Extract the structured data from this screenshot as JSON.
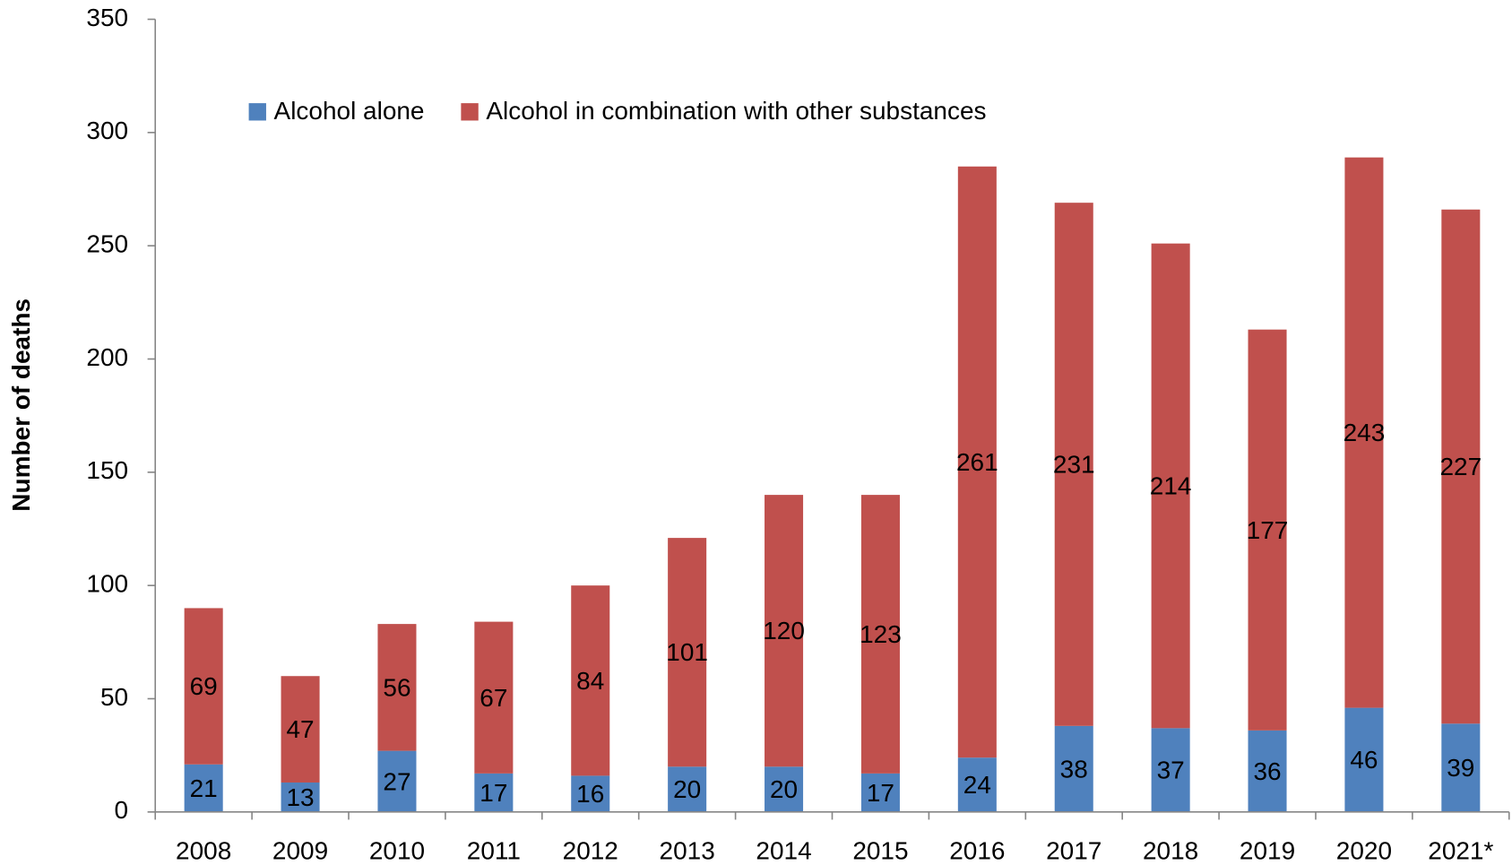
{
  "chart_data": {
    "type": "stacked_bar",
    "y_label": "Number of deaths",
    "categories": [
      "2008",
      "2009",
      "2010",
      "2011",
      "2012",
      "2013",
      "2014",
      "2015",
      "2016",
      "2017",
      "2018",
      "2019",
      "2020",
      "2021*"
    ],
    "series": [
      {
        "name": "Alcohol alone",
        "color": "#4f81bd",
        "values": [
          21,
          13,
          27,
          17,
          16,
          20,
          20,
          17,
          24,
          38,
          37,
          36,
          46,
          39
        ]
      },
      {
        "name": "Alcohol in combination with other substances",
        "color": "#c0504d",
        "values": [
          69,
          47,
          56,
          67,
          84,
          101,
          120,
          123,
          261,
          231,
          214,
          177,
          243,
          227
        ]
      }
    ],
    "ylim": [
      0,
      350
    ],
    "yticks": [
      0,
      50,
      100,
      150,
      200,
      250,
      300,
      350
    ],
    "grid": false,
    "legend": "top-left",
    "data_labels": true
  }
}
